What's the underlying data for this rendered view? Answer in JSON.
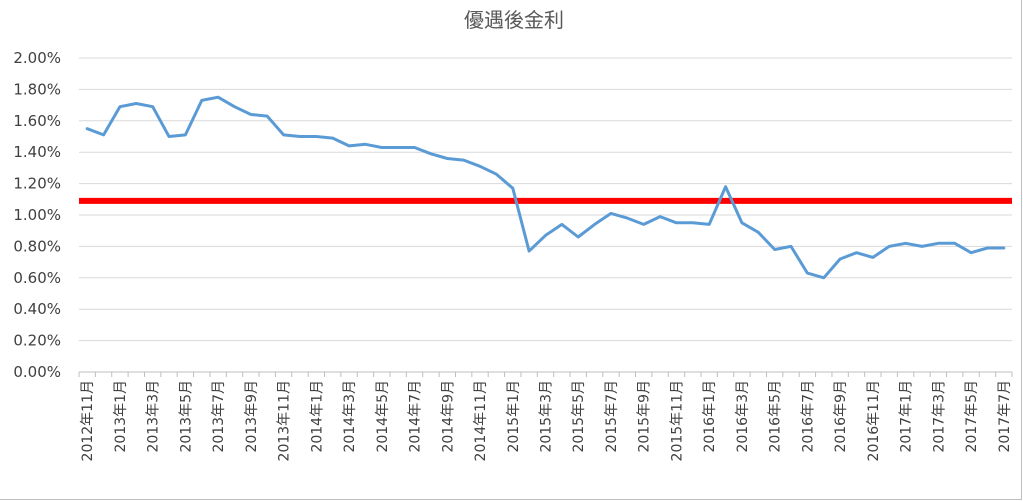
{
  "chart_data": {
    "type": "line",
    "title": "優遇後金利",
    "xlabel": "",
    "ylabel": "",
    "ylim": [
      0,
      0.02
    ],
    "yticks": [
      "0.00%",
      "0.20%",
      "0.40%",
      "0.60%",
      "0.80%",
      "1.00%",
      "1.20%",
      "1.40%",
      "1.60%",
      "1.80%",
      "2.00%"
    ],
    "grid": true,
    "legend": "none",
    "x": [
      "2012年11月",
      "2012年12月",
      "2013年1月",
      "2013年2月",
      "2013年3月",
      "2013年4月",
      "2013年5月",
      "2013年6月",
      "2013年7月",
      "2013年8月",
      "2013年9月",
      "2013年10月",
      "2013年11月",
      "2013年12月",
      "2014年1月",
      "2014年2月",
      "2014年3月",
      "2014年4月",
      "2014年5月",
      "2014年6月",
      "2014年7月",
      "2014年8月",
      "2014年9月",
      "2014年10月",
      "2014年11月",
      "2014年12月",
      "2015年1月",
      "2015年2月",
      "2015年3月",
      "2015年4月",
      "2015年5月",
      "2015年6月",
      "2015年7月",
      "2015年8月",
      "2015年9月",
      "2015年10月",
      "2015年11月",
      "2015年12月",
      "2016年1月",
      "2016年2月",
      "2016年3月",
      "2016年4月",
      "2016年5月",
      "2016年6月",
      "2016年7月",
      "2016年8月",
      "2016年9月",
      "2016年10月",
      "2016年11月",
      "2016年12月",
      "2017年1月",
      "2017年2月",
      "2017年3月",
      "2017年4月",
      "2017年5月",
      "2017年6月",
      "2017年7月"
    ],
    "xtick_labels": [
      "2012年11月",
      "2013年1月",
      "2013年3月",
      "2013年5月",
      "2013年7月",
      "2013年9月",
      "2013年11月",
      "2014年1月",
      "2014年3月",
      "2014年5月",
      "2014年7月",
      "2014年9月",
      "2014年11月",
      "2015年1月",
      "2015年3月",
      "2015年5月",
      "2015年7月",
      "2015年9月",
      "2015年11月",
      "2016年1月",
      "2016年3月",
      "2016年5月",
      "2016年7月",
      "2016年9月",
      "2016年11月",
      "2017年1月",
      "2017年3月",
      "2017年5月",
      "2017年7月"
    ],
    "series": [
      {
        "color": "#5b9bd5",
        "values": [
          0.0155,
          0.0151,
          0.0169,
          0.0171,
          0.0169,
          0.015,
          0.0151,
          0.0173,
          0.0175,
          0.0169,
          0.0164,
          0.0163,
          0.0151,
          0.015,
          0.015,
          0.0149,
          0.0144,
          0.0145,
          0.0143,
          0.0143,
          0.0143,
          0.0139,
          0.0136,
          0.0135,
          0.0131,
          0.0126,
          0.0117,
          0.0077,
          0.0087,
          0.0094,
          0.0086,
          0.0094,
          0.0101,
          0.0098,
          0.0094,
          0.0099,
          0.0095,
          0.0095,
          0.0094,
          0.0118,
          0.0095,
          0.0089,
          0.0078,
          0.008,
          0.0063,
          0.006,
          0.0072,
          0.0076,
          0.0073,
          0.008,
          0.0082,
          0.008,
          0.0082,
          0.0082,
          0.0076,
          0.0079,
          0.0079
        ]
      }
    ],
    "reference_line": {
      "value": 0.0109,
      "color": "#ff0000"
    }
  }
}
